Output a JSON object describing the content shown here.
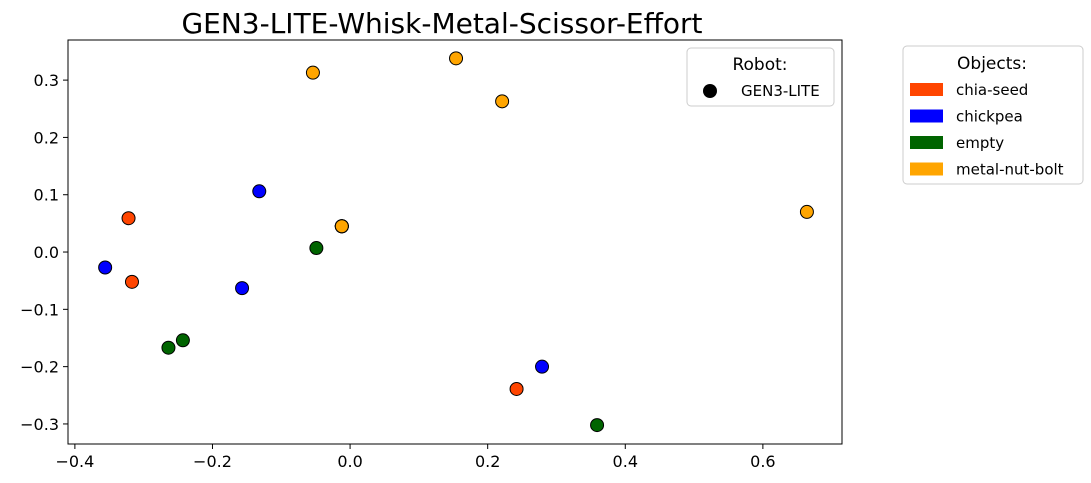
{
  "chart_data": {
    "type": "scatter",
    "title": "GEN3-LITE-Whisk-Metal-Scissor-Effort",
    "xlabel": "",
    "ylabel": "",
    "xlim": [
      -0.41,
      0.715
    ],
    "ylim": [
      -0.335,
      0.37
    ],
    "xticks": [
      -0.4,
      -0.2,
      0.0,
      0.2,
      0.4,
      0.6
    ],
    "xtick_labels": [
      "−0.4",
      "−0.2",
      "0.0",
      "0.2",
      "0.4",
      "0.6"
    ],
    "yticks": [
      -0.3,
      -0.2,
      -0.1,
      0.0,
      0.1,
      0.2,
      0.3
    ],
    "ytick_labels": [
      "−0.3",
      "−0.2",
      "−0.1",
      "0.0",
      "0.1",
      "0.2",
      "0.3"
    ],
    "grid": false,
    "series": [
      {
        "name": "chia-seed",
        "color": "#FF4500",
        "x": [
          -0.322,
          -0.317,
          0.242,
          -0.012
        ],
        "y": [
          0.059,
          -0.052,
          -0.239,
          0.045
        ]
      },
      {
        "name": "chickpea",
        "color": "#0000FF",
        "x": [
          -0.132,
          -0.356,
          -0.157,
          0.279,
          -0.012
        ],
        "y": [
          0.106,
          -0.027,
          -0.063,
          -0.2,
          0.045
        ]
      },
      {
        "name": "empty",
        "color": "#006400",
        "x": [
          -0.049,
          -0.243,
          -0.264,
          0.359,
          -0.012
        ],
        "y": [
          0.007,
          -0.154,
          -0.167,
          -0.302,
          0.045
        ]
      },
      {
        "name": "metal-nut-bolt",
        "color": "#FFA500",
        "x": [
          -0.054,
          0.154,
          0.221,
          0.664,
          -0.012
        ],
        "y": [
          0.313,
          0.338,
          0.263,
          0.07,
          0.045
        ]
      }
    ],
    "legends": [
      {
        "title": "Robot:",
        "placement": "upper-right-inside",
        "entries": [
          {
            "label": "GEN3-LITE",
            "marker": "circle",
            "color": "#000000"
          }
        ]
      },
      {
        "title": "Objects:",
        "placement": "outside-right",
        "entries": [
          {
            "label": "chia-seed",
            "marker": "patch",
            "color": "#FF4500"
          },
          {
            "label": "chickpea",
            "marker": "patch",
            "color": "#0000FF"
          },
          {
            "label": "empty",
            "marker": "patch",
            "color": "#006400"
          },
          {
            "label": "metal-nut-bolt",
            "marker": "patch",
            "color": "#FFA500"
          }
        ]
      }
    ]
  }
}
